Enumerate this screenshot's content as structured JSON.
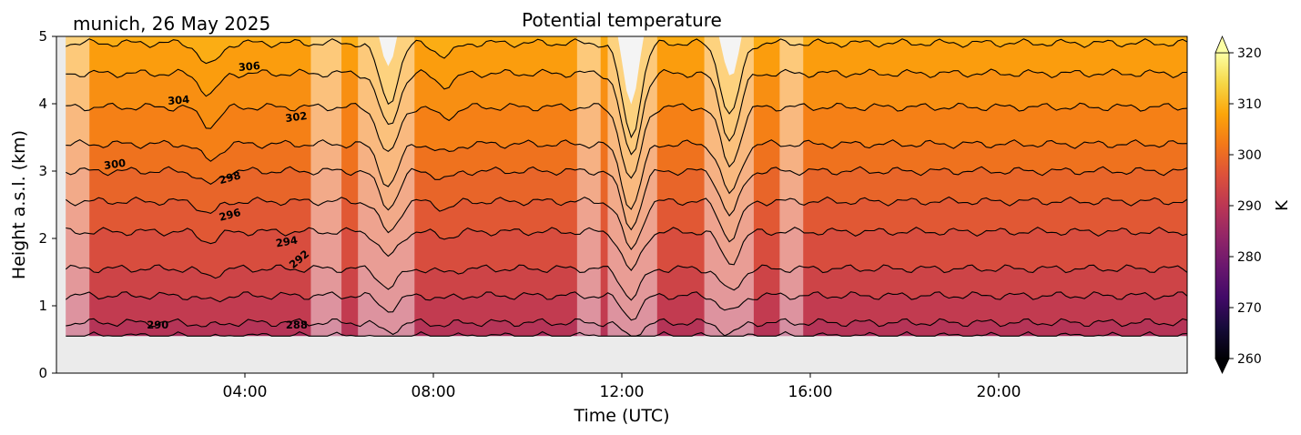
{
  "location_label": "munich, 26 May 2025",
  "chart_data": {
    "type": "heatmap",
    "title": "Potential temperature",
    "xlabel": "Time (UTC)",
    "ylabel": "Height a.s.l. (km)",
    "xlim_hours": [
      0,
      24
    ],
    "ylim_km": [
      0,
      5
    ],
    "x_ticks": [
      {
        "hour": 4,
        "label": "04:00"
      },
      {
        "hour": 8,
        "label": "08:00"
      },
      {
        "hour": 12,
        "label": "12:00"
      },
      {
        "hour": 16,
        "label": "16:00"
      },
      {
        "hour": 20,
        "label": "20:00"
      }
    ],
    "y_ticks": [
      0,
      1,
      2,
      3,
      4,
      5
    ],
    "data_bottom_km": 0.55,
    "data_start_hour": 0.2,
    "colorbar": {
      "label": "K",
      "min": 260,
      "max": 320,
      "ticks": [
        260,
        270,
        280,
        290,
        300,
        310,
        320
      ],
      "colormap": "inferno",
      "extend": "both"
    },
    "contours": [
      {
        "theta": 288,
        "base_height_km": 0.55
      },
      {
        "theta": 290,
        "base_height_km": 0.75
      },
      {
        "theta": 292,
        "base_height_km": 1.15
      },
      {
        "theta": 294,
        "base_height_km": 1.55
      },
      {
        "theta": 296,
        "base_height_km": 2.1
      },
      {
        "theta": 298,
        "base_height_km": 2.55
      },
      {
        "theta": 300,
        "base_height_km": 3.0
      },
      {
        "theta": 302,
        "base_height_km": 3.4
      },
      {
        "theta": 304,
        "base_height_km": 3.95
      },
      {
        "theta": 306,
        "base_height_km": 4.45
      },
      {
        "theta": 308,
        "base_height_km": 4.9
      }
    ],
    "contour_labels": [
      {
        "text": "290",
        "hour": 2.15,
        "height_km": 0.66
      },
      {
        "text": "288",
        "hour": 5.1,
        "height_km": 0.66
      },
      {
        "text": "292",
        "hour": 5.2,
        "height_km": 1.65,
        "rotate": -40
      },
      {
        "text": "294",
        "hour": 4.9,
        "height_km": 1.9,
        "rotate": -10
      },
      {
        "text": "296",
        "hour": 3.7,
        "height_km": 2.3,
        "rotate": -15
      },
      {
        "text": "298",
        "hour": 3.7,
        "height_km": 2.85,
        "rotate": -15
      },
      {
        "text": "300",
        "hour": 1.25,
        "height_km": 3.05,
        "rotate": -8
      },
      {
        "text": "302",
        "hour": 5.1,
        "height_km": 3.75,
        "rotate": -8
      },
      {
        "text": "304",
        "hour": 2.6,
        "height_km": 4.0,
        "rotate": -5
      },
      {
        "text": "306",
        "hour": 4.1,
        "height_km": 4.5,
        "rotate": -5
      }
    ],
    "masked_intervals_hours": [
      [
        0.2,
        0.7
      ],
      [
        5.4,
        6.05
      ],
      [
        6.4,
        7.6
      ],
      [
        11.05,
        11.55
      ],
      [
        11.7,
        12.75
      ],
      [
        13.75,
        14.8
      ],
      [
        15.35,
        15.85
      ]
    ],
    "dips": [
      {
        "hour": 3.25,
        "depth_km": 0.35
      },
      {
        "hour": 7.05,
        "depth_km": 0.9
      },
      {
        "hour": 12.2,
        "depth_km": 1.4
      },
      {
        "hour": 14.3,
        "depth_km": 1.1
      },
      {
        "hour": 8.25,
        "depth_km": 0.2
      }
    ],
    "colors": {
      "missing_data": "#ebebeb",
      "mask_overlay": "#ffffff",
      "contour_line": "#000000"
    }
  }
}
